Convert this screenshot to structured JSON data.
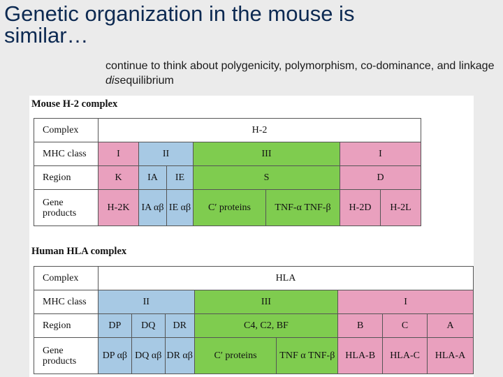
{
  "slide": {
    "title": "Genetic organization in the mouse is similar…",
    "subtitle_pre": "continue to think about polygenicity, polymorphism, co-dominance, and linkage ",
    "subtitle_em": "dis",
    "subtitle_post": "equilibrium"
  },
  "mouse": {
    "caption": "Mouse H-2 complex",
    "row_labels": {
      "complex": "Complex",
      "mhc_class": "MHC class",
      "region": "Region",
      "gene_products": "Gene products"
    },
    "complex_name": "H-2",
    "classes": {
      "c1": "I",
      "c2": "II",
      "c3": "III",
      "c4": "I"
    },
    "regions": {
      "k": "K",
      "ia": "IA",
      "ie": "IE",
      "s": "S",
      "d": "D"
    },
    "products": {
      "h2k": "H-2K",
      "ia": "IA αβ",
      "ie": "IE αβ",
      "cprot": "C′ proteins",
      "tnf": "TNF-α TNF-β",
      "h2d": "H-2D",
      "h2l": "H-2L"
    }
  },
  "human": {
    "caption": "Human HLA complex",
    "row_labels": {
      "complex": "Complex",
      "mhc_class": "MHC class",
      "region": "Region",
      "gene_products": "Gene products"
    },
    "complex_name": "HLA",
    "classes": {
      "c2": "II",
      "c3": "III",
      "c1": "I"
    },
    "regions": {
      "dp": "DP",
      "dq": "DQ",
      "dr": "DR",
      "c4": "C4, C2, BF",
      "b": "B",
      "c": "C",
      "a": "A"
    },
    "products": {
      "dp": "DP αβ",
      "dq": "DQ αβ",
      "dr": "DR αβ",
      "cprot": "C′ proteins",
      "tnf": "TNF α TNF-β",
      "hlab": "HLA-B",
      "hlac": "HLA-C",
      "hlaa": "HLA-A"
    }
  },
  "colors": {
    "class_I": "#e9a0be",
    "class_II": "#a7c9e4",
    "class_III": "#7fcc4f",
    "background": "#ebebeb",
    "title": "#0d2a52"
  }
}
